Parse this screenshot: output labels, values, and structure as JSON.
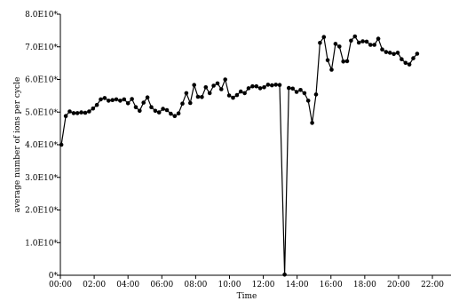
{
  "chart_data": {
    "type": "line",
    "title": "",
    "xlabel": "Time",
    "ylabel": "average number of ions per cycle",
    "x_unit": "hours",
    "xlim": [
      0,
      23.1
    ],
    "ylim": [
      0,
      80000000000
    ],
    "x_ticks": [
      {
        "value": 0,
        "label": "00:00"
      },
      {
        "value": 2,
        "label": "02:00"
      },
      {
        "value": 4,
        "label": "04:00"
      },
      {
        "value": 6,
        "label": "06:00"
      },
      {
        "value": 8,
        "label": "08:00"
      },
      {
        "value": 10,
        "label": "10:00"
      },
      {
        "value": 12,
        "label": "12:00"
      },
      {
        "value": 14,
        "label": "14:00"
      },
      {
        "value": 16,
        "label": "16:00"
      },
      {
        "value": 18,
        "label": "18:00"
      },
      {
        "value": 20,
        "label": "20:00"
      },
      {
        "value": 22,
        "label": "22:00"
      }
    ],
    "y_ticks": [
      {
        "value": 0,
        "label": "0*"
      },
      {
        "value": 10000000000,
        "label": "1.0E10*"
      },
      {
        "value": 20000000000,
        "label": "2.0E10*"
      },
      {
        "value": 30000000000,
        "label": "3.0E10*"
      },
      {
        "value": 40000000000,
        "label": "4.0E10*"
      },
      {
        "value": 50000000000,
        "label": "5.0E10*"
      },
      {
        "value": 60000000000,
        "label": "6.0E10*"
      },
      {
        "value": 70000000000,
        "label": "7.0E10*"
      },
      {
        "value": 80000000000,
        "label": "8.0E10*"
      }
    ],
    "grid": false,
    "legend": "none",
    "series": [
      {
        "color": "#000000",
        "marker": "circle",
        "points": [
          [
            0.06,
            40000000000.0
          ],
          [
            0.32,
            48800000000.0
          ],
          [
            0.55,
            50200000000.0
          ],
          [
            0.78,
            49700000000.0
          ],
          [
            1.01,
            49700000000.0
          ],
          [
            1.24,
            49900000000.0
          ],
          [
            1.47,
            49800000000.0
          ],
          [
            1.7,
            50200000000.0
          ],
          [
            1.93,
            51100000000.0
          ],
          [
            2.16,
            52200000000.0
          ],
          [
            2.39,
            53900000000.0
          ],
          [
            2.62,
            54300000000.0
          ],
          [
            2.85,
            53500000000.0
          ],
          [
            3.08,
            53700000000.0
          ],
          [
            3.31,
            53900000000.0
          ],
          [
            3.54,
            53500000000.0
          ],
          [
            3.77,
            53900000000.0
          ],
          [
            4.0,
            52700000000.0
          ],
          [
            4.23,
            54000000000.0
          ],
          [
            4.46,
            51500000000.0
          ],
          [
            4.69,
            50400000000.0
          ],
          [
            4.92,
            52900000000.0
          ],
          [
            5.15,
            54500000000.0
          ],
          [
            5.38,
            51500000000.0
          ],
          [
            5.61,
            50400000000.0
          ],
          [
            5.84,
            49900000000.0
          ],
          [
            6.07,
            51000000000.0
          ],
          [
            6.3,
            50600000000.0
          ],
          [
            6.53,
            49500000000.0
          ],
          [
            6.76,
            48800000000.0
          ],
          [
            6.99,
            49600000000.0
          ],
          [
            7.22,
            52600000000.0
          ],
          [
            7.45,
            55800000000.0
          ],
          [
            7.68,
            52800000000.0
          ],
          [
            7.91,
            58300000000.0
          ],
          [
            8.14,
            54700000000.0
          ],
          [
            8.37,
            54600000000.0
          ],
          [
            8.6,
            57600000000.0
          ],
          [
            8.83,
            55800000000.0
          ],
          [
            9.06,
            58100000000.0
          ],
          [
            9.29,
            58800000000.0
          ],
          [
            9.52,
            57000000000.0
          ],
          [
            9.75,
            60000000000.0
          ],
          [
            9.98,
            55100000000.0
          ],
          [
            10.21,
            54400000000.0
          ],
          [
            10.44,
            55200000000.0
          ],
          [
            10.67,
            56300000000.0
          ],
          [
            10.9,
            55800000000.0
          ],
          [
            11.13,
            57300000000.0
          ],
          [
            11.36,
            57900000000.0
          ],
          [
            11.59,
            57900000000.0
          ],
          [
            11.82,
            57300000000.0
          ],
          [
            12.05,
            57600000000.0
          ],
          [
            12.28,
            58400000000.0
          ],
          [
            12.51,
            58200000000.0
          ],
          [
            12.74,
            58400000000.0
          ],
          [
            12.97,
            58300000000.0
          ],
          [
            13.26,
            200000000.0
          ],
          [
            13.51,
            57400000000.0
          ],
          [
            13.74,
            57200000000.0
          ],
          [
            13.97,
            56200000000.0
          ],
          [
            14.2,
            56800000000.0
          ],
          [
            14.43,
            55800000000.0
          ],
          [
            14.66,
            53500000000.0
          ],
          [
            14.89,
            46700000000.0
          ],
          [
            15.12,
            55400000000.0
          ],
          [
            15.35,
            71200000000.0
          ],
          [
            15.58,
            73000000000.0
          ],
          [
            15.81,
            65900000000.0
          ],
          [
            16.04,
            63000000000.0
          ],
          [
            16.27,
            70900000000.0
          ],
          [
            16.5,
            70100000000.0
          ],
          [
            16.73,
            65500000000.0
          ],
          [
            16.96,
            65600000000.0
          ],
          [
            17.19,
            71900000000.0
          ],
          [
            17.42,
            73200000000.0
          ],
          [
            17.65,
            71300000000.0
          ],
          [
            17.88,
            71700000000.0
          ],
          [
            18.11,
            71600000000.0
          ],
          [
            18.34,
            70600000000.0
          ],
          [
            18.57,
            70600000000.0
          ],
          [
            18.8,
            72500000000.0
          ],
          [
            19.03,
            69200000000.0
          ],
          [
            19.26,
            68400000000.0
          ],
          [
            19.49,
            68200000000.0
          ],
          [
            19.72,
            67800000000.0
          ],
          [
            19.95,
            68200000000.0
          ],
          [
            20.18,
            66200000000.0
          ],
          [
            20.41,
            65100000000.0
          ],
          [
            20.64,
            64600000000.0
          ],
          [
            20.87,
            66500000000.0
          ],
          [
            21.1,
            67900000000.0
          ]
        ]
      }
    ]
  }
}
